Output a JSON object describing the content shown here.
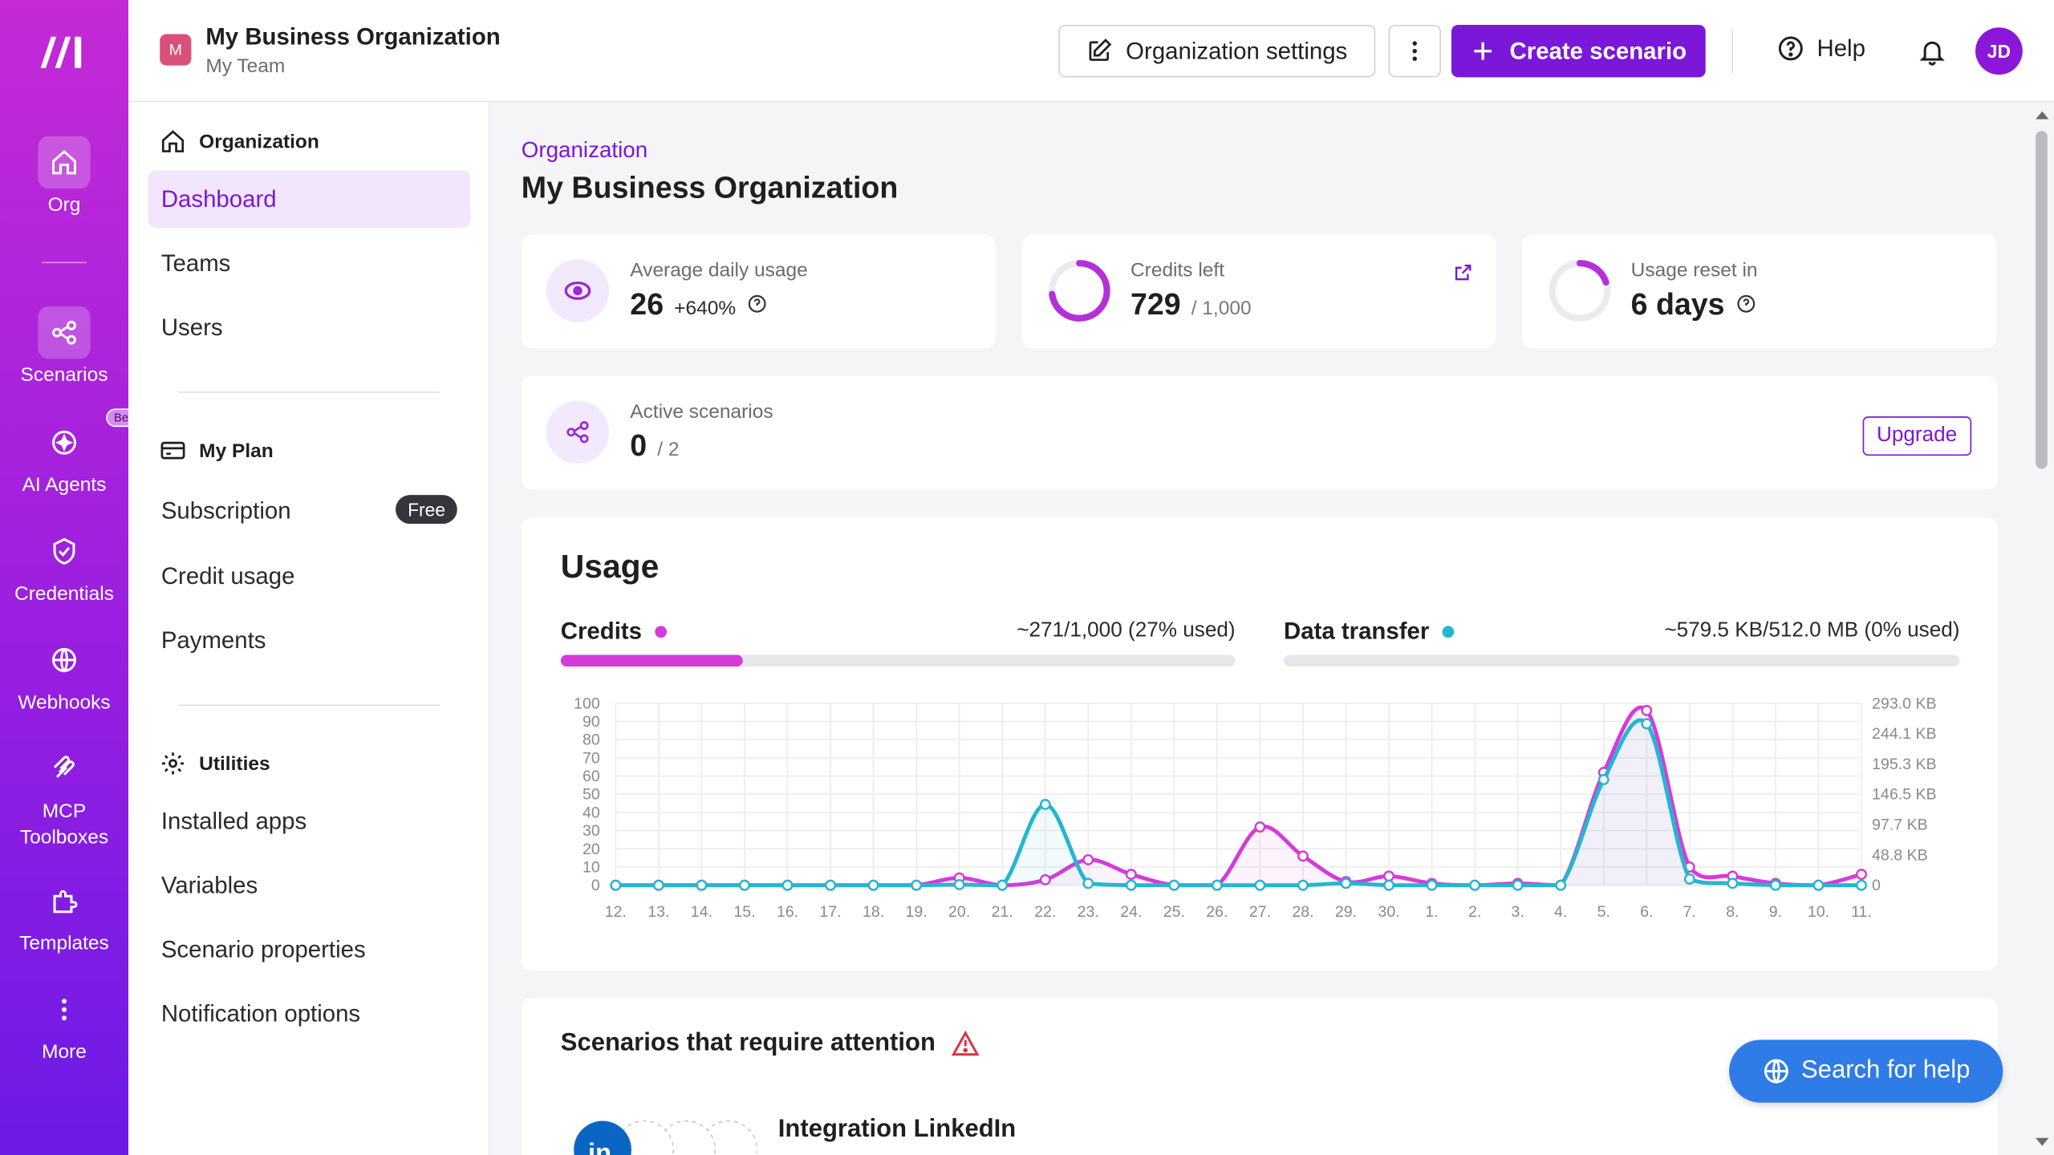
{
  "rail": {
    "items": [
      {
        "label": "Org",
        "icon": "home-icon"
      },
      {
        "label": "Scenarios",
        "icon": "share-nodes-icon"
      },
      {
        "label": "AI Agents",
        "icon": "sparkle-icon",
        "badge": "Beta"
      },
      {
        "label": "Credentials",
        "icon": "shield-check-icon"
      },
      {
        "label": "Webhooks",
        "icon": "globe-icon"
      },
      {
        "label": "MCP Toolboxes",
        "icon": "mcp-icon"
      },
      {
        "label": "Templates",
        "icon": "puzzle-icon"
      },
      {
        "label": "More",
        "icon": "kebab-icon"
      }
    ]
  },
  "topbar": {
    "org_initial": "M",
    "org_name": "My Business Organization",
    "team_name": "My Team",
    "settings_label": "Organization settings",
    "create_label": "Create scenario",
    "help_label": "Help",
    "user_initials": "JD"
  },
  "subnav": {
    "organization_heading": "Organization",
    "org_items": [
      "Dashboard",
      "Teams",
      "Users"
    ],
    "plan_heading": "My Plan",
    "plan_items": [
      "Subscription",
      "Credit usage",
      "Payments"
    ],
    "plan_badge": "Free",
    "utilities_heading": "Utilities",
    "utility_items": [
      "Installed apps",
      "Variables",
      "Scenario properties",
      "Notification options"
    ]
  },
  "main": {
    "breadcrumb": "Organization",
    "title": "My Business Organization",
    "stats": {
      "avg_daily": {
        "label": "Average daily usage",
        "value": "26",
        "delta": "+640%"
      },
      "credits_left": {
        "label": "Credits left",
        "value": "729",
        "total": "/ 1,000",
        "fraction": 0.729
      },
      "usage_reset": {
        "label": "Usage reset in",
        "value": "6 days",
        "fraction": 0.2
      }
    },
    "active": {
      "label": "Active scenarios",
      "value": "0",
      "total": "/ 2",
      "upgrade_label": "Upgrade"
    },
    "usage": {
      "title": "Usage",
      "credits_label": "Credits",
      "credits_value": "~271/1,000 (27% used)",
      "credits_fraction": 0.27,
      "transfer_label": "Data transfer",
      "transfer_value": "~579.5 KB/512.0 MB (0% used)",
      "transfer_fraction": 0.0
    },
    "attention": {
      "title": "Scenarios that require attention",
      "scenario_name": "Integration LinkedIn"
    },
    "search_help_label": "Search for help"
  },
  "colors": {
    "accent": "#7b17d8",
    "credits": "#d63ad9",
    "transfer": "#25b6cf"
  },
  "chart_data": {
    "type": "line",
    "x": [
      "12.",
      "13.",
      "14.",
      "15.",
      "16.",
      "17.",
      "18.",
      "19.",
      "20.",
      "21.",
      "22.",
      "23.",
      "24.",
      "25.",
      "26.",
      "27.",
      "28.",
      "29.",
      "30.",
      "1.",
      "2.",
      "3.",
      "4.",
      "5.",
      "6.",
      "7.",
      "8.",
      "9.",
      "10.",
      "11."
    ],
    "y_left_ticks": [
      "100",
      "90",
      "80",
      "70",
      "60",
      "50",
      "40",
      "30",
      "20",
      "10",
      "0"
    ],
    "y_right_ticks": [
      "293.0 KB",
      "244.1 KB",
      "195.3 KB",
      "146.5 KB",
      "97.7 KB",
      "48.8 KB",
      "0"
    ],
    "ylim_left": [
      0,
      100
    ],
    "ylim_right_kb": [
      0,
      293.0
    ],
    "series": [
      {
        "name": "Credits",
        "axis": "left",
        "values": [
          0,
          0,
          0,
          0,
          0,
          0,
          0,
          0,
          4,
          0,
          3,
          14,
          6,
          0,
          0,
          32,
          16,
          2,
          5,
          1,
          0,
          1,
          0,
          62,
          96,
          10,
          5,
          1,
          0,
          6
        ]
      },
      {
        "name": "Data transfer",
        "axis": "right",
        "values": [
          0,
          0,
          0,
          0,
          0,
          0,
          0,
          0,
          1,
          0,
          130,
          3,
          0,
          0,
          0,
          0,
          0,
          3,
          0,
          0,
          0,
          0,
          0,
          170,
          260,
          10,
          3,
          0,
          0,
          0
        ]
      }
    ],
    "grid": true
  }
}
